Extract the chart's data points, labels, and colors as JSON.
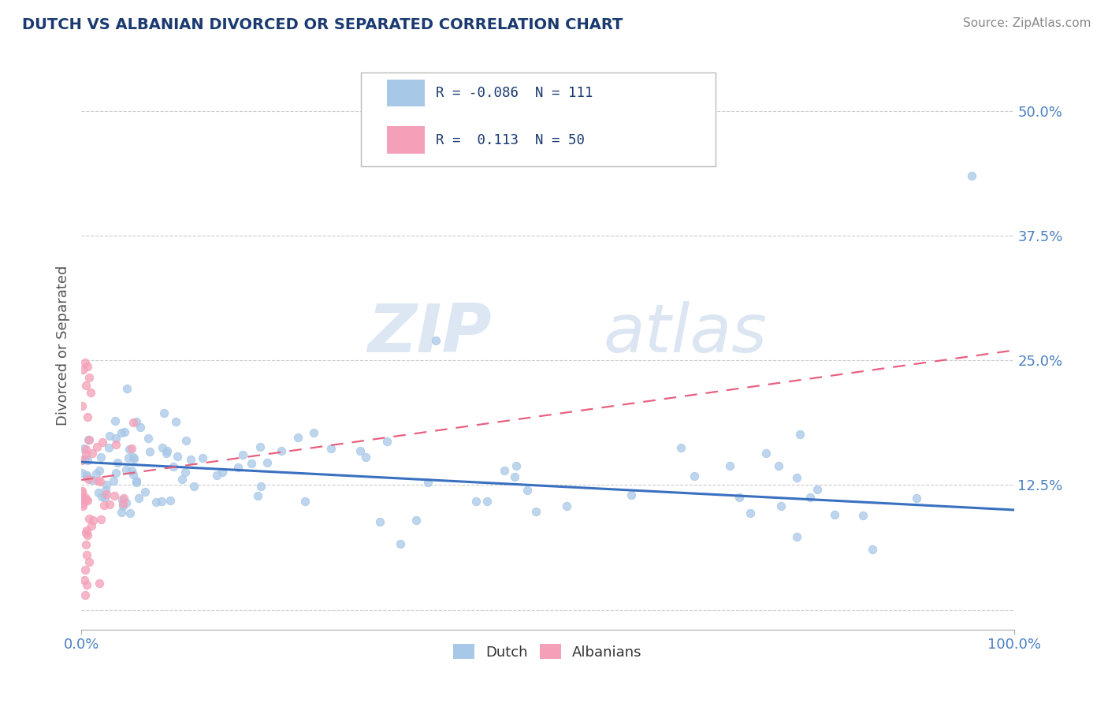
{
  "title": "DUTCH VS ALBANIAN DIVORCED OR SEPARATED CORRELATION CHART",
  "source_text": "Source: ZipAtlas.com",
  "ylabel": "Divorced or Separated",
  "x_min": 0.0,
  "x_max": 1.0,
  "y_min": -0.02,
  "y_max": 0.55,
  "yticks": [
    0.0,
    0.125,
    0.25,
    0.375,
    0.5
  ],
  "ytick_labels": [
    "",
    "12.5%",
    "25.0%",
    "37.5%",
    "50.0%"
  ],
  "xtick_labels": [
    "0.0%",
    "100.0%"
  ],
  "legend_dutch_R": "-0.086",
  "legend_dutch_N": "111",
  "legend_albanian_R": "0.113",
  "legend_albanian_N": "50",
  "dutch_color": "#a8c8e8",
  "albanian_color": "#f4a0b8",
  "dutch_line_color": "#3a70c0",
  "albanian_line_color": "#e86080",
  "watermark_zip": "ZIP",
  "watermark_atlas": "atlas",
  "background_color": "#ffffff",
  "title_color": "#1a3a70",
  "axis_label_color": "#555555",
  "tick_label_color": "#4a80c0",
  "grid_color": "#cccccc",
  "dutch_trend_x0": 0.0,
  "dutch_trend_y0": 0.148,
  "dutch_trend_x1": 1.0,
  "dutch_trend_y1": 0.1,
  "alb_trend_x0": 0.0,
  "alb_trend_y0": 0.13,
  "alb_trend_x1": 1.0,
  "alb_trend_y1": 0.26
}
